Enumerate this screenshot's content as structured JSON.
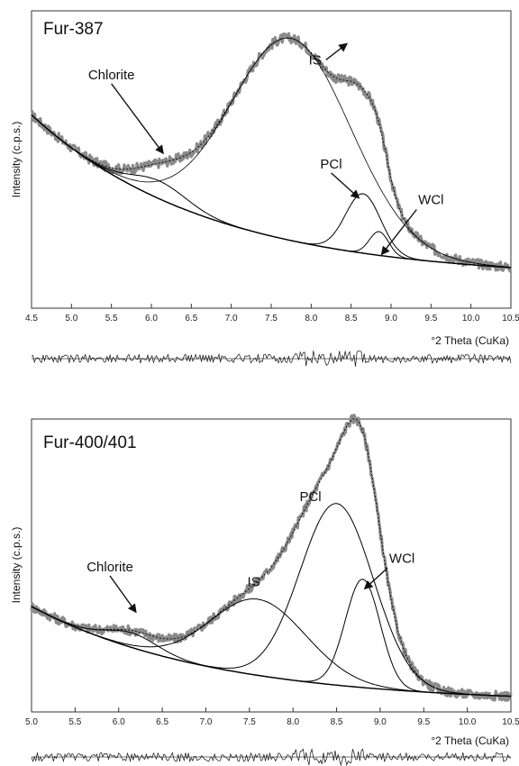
{
  "chart_data": [
    {
      "type": "line",
      "title": "Fur-387",
      "xlabel": "°2 Theta (CuKa)",
      "ylabel": "Intensity (c.p.s.)",
      "xlim": [
        4.5,
        10.5
      ],
      "ylim": [
        0,
        100
      ],
      "xticks": [
        "4.5",
        "5.0",
        "5.5",
        "6.0",
        "6.5",
        "7.0",
        "7.5",
        "8.0",
        "8.5",
        "9.0",
        "9.5",
        "10.0",
        "10.5"
      ],
      "grid": false,
      "background": {
        "a": 55,
        "b": 10,
        "k": 0.45
      },
      "peaks": [
        {
          "name": "Chlorite",
          "center": 6.1,
          "height": 6,
          "width": 0.35
        },
        {
          "name": "IS",
          "center": 7.75,
          "height": 68,
          "width": 0.75
        },
        {
          "name": "PCl",
          "center": 8.65,
          "height": 20,
          "width": 0.22
        },
        {
          "name": "WCl",
          "center": 8.85,
          "height": 8,
          "width": 0.12
        }
      ],
      "annotations": [
        {
          "text": "Chlorite",
          "x": 5.5,
          "y": 77,
          "to_x": 6.15,
          "to_y": 52
        },
        {
          "text": "IS",
          "x": 8.05,
          "y": 82,
          "to_x": 8.45,
          "to_y": 89
        },
        {
          "text": "PCl",
          "x": 8.25,
          "y": 47,
          "to_x": 8.6,
          "to_y": 37
        },
        {
          "text": "WCl",
          "x": 9.5,
          "y": 35,
          "to_x": 8.88,
          "to_y": 18
        }
      ],
      "colors": {
        "observed": "#8a8a8a",
        "model": "#000000"
      }
    },
    {
      "type": "line",
      "title": "Fur-400/401",
      "xlabel": "°2 Theta (CuKa)",
      "ylabel": "Intensity (c.p.s.)",
      "xlim": [
        5.0,
        10.5
      ],
      "ylim": [
        0,
        100
      ],
      "xticks": [
        "5.0",
        "5.5",
        "6.0",
        "6.5",
        "7.0",
        "7.5",
        "8.0",
        "8.5",
        "9.0",
        "9.5",
        "10.0",
        "10.5"
      ],
      "grid": false,
      "background": {
        "a": 33,
        "b": 3,
        "k": 0.48
      },
      "peaks": [
        {
          "name": "Chlorite",
          "center": 6.15,
          "height": 5,
          "width": 0.3
        },
        {
          "name": "IS",
          "center": 7.6,
          "height": 26,
          "width": 0.55
        },
        {
          "name": "PCl",
          "center": 8.5,
          "height": 62,
          "width": 0.42
        },
        {
          "name": "WCl",
          "center": 8.8,
          "height": 37,
          "width": 0.2
        }
      ],
      "annotations": [
        {
          "text": "Chlorite",
          "x": 5.9,
          "y": 48,
          "to_x": 6.2,
          "to_y": 34
        },
        {
          "text": "IS",
          "x": 7.55,
          "y": 43
        },
        {
          "text": "PCl",
          "x": 8.2,
          "y": 72
        },
        {
          "text": "WCl",
          "x": 9.25,
          "y": 51,
          "to_x": 8.82,
          "to_y": 42
        }
      ],
      "colors": {
        "observed": "#8a8a8a",
        "model": "#000000"
      }
    }
  ]
}
